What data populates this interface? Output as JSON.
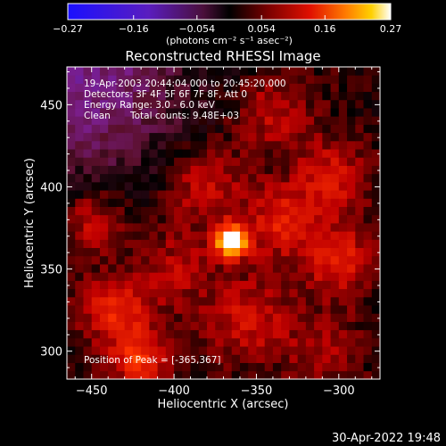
{
  "chart_data": {
    "type": "heatmap",
    "title": "Reconstructed RHESSI Image",
    "xlabel": "Heliocentric X (arcsec)",
    "ylabel": "Heliocentric Y (arcsec)",
    "xlim": [
      -465,
      -275
    ],
    "ylim": [
      283,
      473
    ],
    "x_ticks": [
      -450,
      -400,
      -350,
      -300
    ],
    "y_ticks": [
      300,
      350,
      400,
      450
    ],
    "x_tick_labels": [
      "−450",
      "−400",
      "−350",
      "−300"
    ],
    "y_tick_labels": [
      "300",
      "350",
      "400",
      "450"
    ],
    "colorbar": {
      "label": "(photons cm⁻² s⁻¹ asec⁻²)",
      "range": [
        -0.27,
        0.27
      ],
      "ticks": [
        -0.27,
        -0.16,
        -0.054,
        0.054,
        0.16,
        0.27
      ],
      "tick_labels": [
        "−0.27",
        "−0.16",
        "−0.054",
        "0.054",
        "0.16",
        "0.27"
      ]
    },
    "peak": {
      "x": -365,
      "y": 367,
      "value": 0.27
    },
    "sources": [
      {
        "x": -365,
        "y": 367,
        "value": 0.27,
        "sigma": 7
      },
      {
        "x": -335,
        "y": 378,
        "value": 0.1,
        "sigma": 14
      },
      {
        "x": -380,
        "y": 400,
        "value": 0.08,
        "sigma": 18
      },
      {
        "x": -305,
        "y": 405,
        "value": 0.09,
        "sigma": 16
      },
      {
        "x": -300,
        "y": 355,
        "value": 0.1,
        "sigma": 15
      },
      {
        "x": -435,
        "y": 325,
        "value": 0.11,
        "sigma": 15
      },
      {
        "x": -420,
        "y": 295,
        "value": 0.12,
        "sigma": 12
      },
      {
        "x": -450,
        "y": 380,
        "value": 0.08,
        "sigma": 14
      },
      {
        "x": -355,
        "y": 320,
        "value": 0.08,
        "sigma": 18
      },
      {
        "x": -310,
        "y": 300,
        "value": 0.05,
        "sigma": 16
      },
      {
        "x": -340,
        "y": 445,
        "value": 0.07,
        "sigma": 16
      },
      {
        "x": -400,
        "y": 350,
        "value": 0.06,
        "sigma": 16
      }
    ],
    "negative_region": {
      "x": -455,
      "y": 465,
      "value": -0.11,
      "sigma": 45
    },
    "background": 0.015,
    "grid": false,
    "colormap": [
      "#1a10ff",
      "#5a1dbf",
      "#7a1e8a",
      "#5a0f2a",
      "#000000",
      "#5a0000",
      "#c00000",
      "#ff3300",
      "#ffa500",
      "#ffffff"
    ]
  },
  "annotations": {
    "time_range": "19-Apr-2003 20:44:04.000 to 20:45:20.000",
    "detectors": "Detectors: 3F 4F 5F 6F 7F 8F, Att 0",
    "energy": "Energy Range: 3.0 - 6.0 keV",
    "clean": "Clean",
    "total_counts": "Total counts: 9.48E+03",
    "peak_position": "Position of Peak = [-365,367]"
  },
  "footer": {
    "timestamp": "30-Apr-2022 19:48"
  }
}
